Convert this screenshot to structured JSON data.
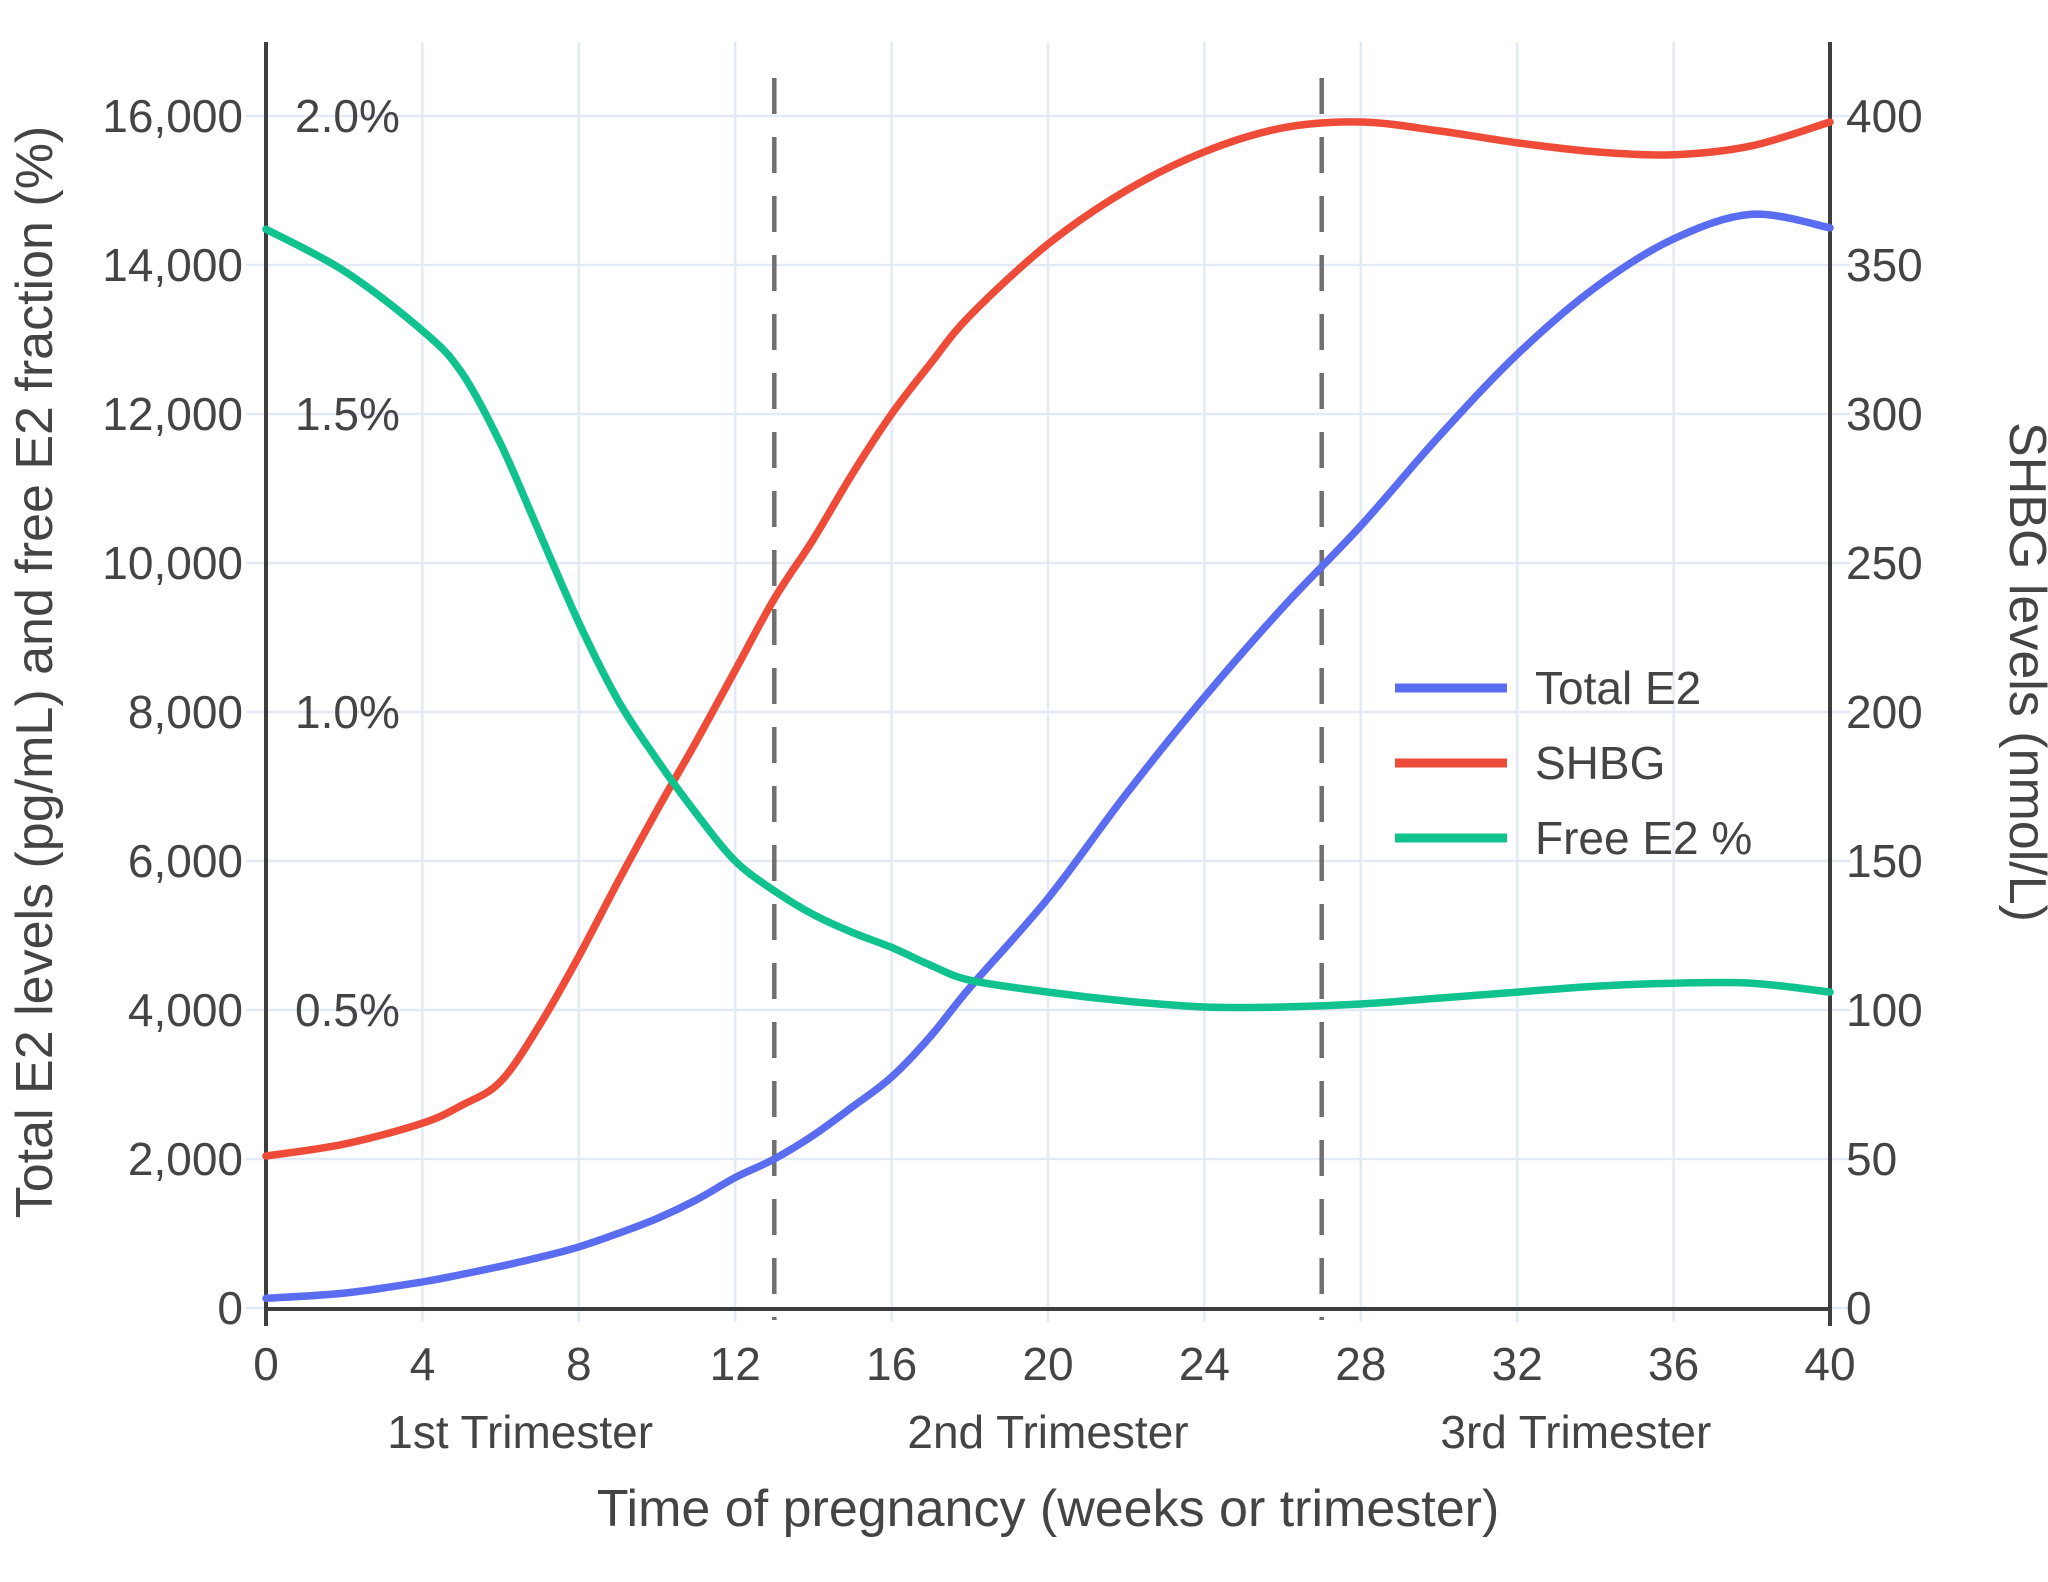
{
  "figure": {
    "background": "#ffffff",
    "text_color": "#444444",
    "grid_color": "#e4eaf5",
    "spine_color": "#3d3d3d",
    "dashed_marker_color": "#6f6f6f"
  },
  "chart_data": {
    "type": "line",
    "title": "",
    "x_axis": {
      "title": "Time of pregnancy (weeks or trimester)",
      "range": [
        0,
        40
      ],
      "ticks": [
        0,
        4,
        8,
        12,
        16,
        20,
        24,
        28,
        32,
        36,
        40
      ],
      "dashed_week_markers": [
        13,
        27
      ],
      "trimester_labels": [
        {
          "label": "1st Trimester",
          "week_center": 6.5
        },
        {
          "label": "2nd Trimester",
          "week_center": 20
        },
        {
          "label": "3rd Trimester",
          "week_center": 33.5
        }
      ]
    },
    "y_axis_left": {
      "title": "Total E2 levels (pg/mL) and free E2 fraction (%)",
      "range": [
        0,
        17000
      ],
      "ticks": [
        0,
        2000,
        4000,
        6000,
        8000,
        10000,
        12000,
        14000,
        16000
      ],
      "percent_annotations": [
        {
          "label": "2.0%",
          "value": 16000
        },
        {
          "label": "1.5%",
          "value": 12000
        },
        {
          "label": "1.0%",
          "value": 8000
        },
        {
          "label": "0.5%",
          "value": 4000
        }
      ]
    },
    "y_axis_right": {
      "title": "SHBG levels (nmol/L)",
      "range": [
        0,
        425
      ],
      "ticks": [
        0,
        50,
        100,
        150,
        200,
        250,
        300,
        350,
        400
      ]
    },
    "weeks": [
      0,
      2,
      4,
      5,
      6,
      7,
      8,
      9,
      10,
      11,
      12,
      13,
      14,
      15,
      16,
      17,
      18,
      20,
      22,
      24,
      26,
      28,
      30,
      32,
      34,
      36,
      38,
      40
    ],
    "series": [
      {
        "name": "Total E2",
        "color": "#5a6cf0",
        "axis": "left",
        "unit": "pg/mL",
        "values": [
          130,
          200,
          350,
          450,
          560,
          680,
          820,
          1000,
          1200,
          1450,
          1750,
          2000,
          2320,
          2700,
          3100,
          3650,
          4300,
          5500,
          6900,
          8200,
          9400,
          10500,
          11700,
          12800,
          13700,
          14350,
          14680,
          14500
        ]
      },
      {
        "name": "SHBG",
        "color": "#ee4b38",
        "axis": "right",
        "unit": "nmol/L",
        "values": [
          51,
          55,
          62,
          68,
          76,
          95,
          118,
          143,
          167,
          190,
          214,
          238,
          258,
          280,
          300,
          317,
          333,
          357,
          375,
          388,
          396,
          398,
          395,
          391,
          388,
          387,
          390,
          398
        ]
      },
      {
        "name": "Free E2 %",
        "color": "#10c28e",
        "axis": "percent",
        "unit": "%",
        "values": [
          1.81,
          1.74,
          1.64,
          1.57,
          1.45,
          1.3,
          1.15,
          1.02,
          0.92,
          0.83,
          0.75,
          0.7,
          0.66,
          0.63,
          0.605,
          0.575,
          0.55,
          0.53,
          0.515,
          0.505,
          0.505,
          0.51,
          0.52,
          0.53,
          0.54,
          0.545,
          0.545,
          0.53
        ]
      }
    ],
    "legend": {
      "position": "inside-middle-right",
      "items": [
        "Total E2",
        "SHBG",
        "Free E2 %"
      ]
    }
  }
}
